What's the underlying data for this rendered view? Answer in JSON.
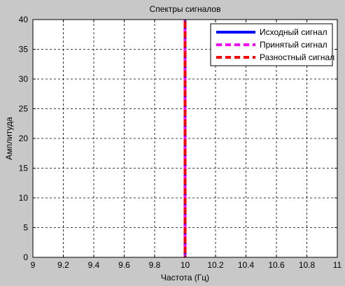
{
  "chart_data": {
    "type": "line",
    "title": "Спектры сигналов",
    "xlabel": "Частота (Гц)",
    "ylabel": "Амплитуда",
    "xlim": [
      9,
      11
    ],
    "ylim": [
      0,
      40
    ],
    "xticks": [
      "9",
      "9.2",
      "9.4",
      "9.6",
      "9.8",
      "10",
      "10.2",
      "10.4",
      "10.6",
      "10.8",
      "11"
    ],
    "yticks": [
      "0",
      "5",
      "10",
      "15",
      "20",
      "25",
      "30",
      "35",
      "40"
    ],
    "grid": true,
    "legend_position": "top-right",
    "series": [
      {
        "name": "Исходный сигнал",
        "color": "#0000ff",
        "style": "solid",
        "x": [
          10,
          10
        ],
        "y": [
          0,
          40
        ]
      },
      {
        "name": "Принятый сигнал",
        "color": "#ff00ff",
        "style": "dashed",
        "x": [
          10,
          10
        ],
        "y": [
          0,
          40
        ]
      },
      {
        "name": "Разностный сигнал",
        "color": "#ff0000",
        "style": "dashed",
        "x": [
          10,
          10
        ],
        "y": [
          0,
          40
        ]
      }
    ]
  }
}
